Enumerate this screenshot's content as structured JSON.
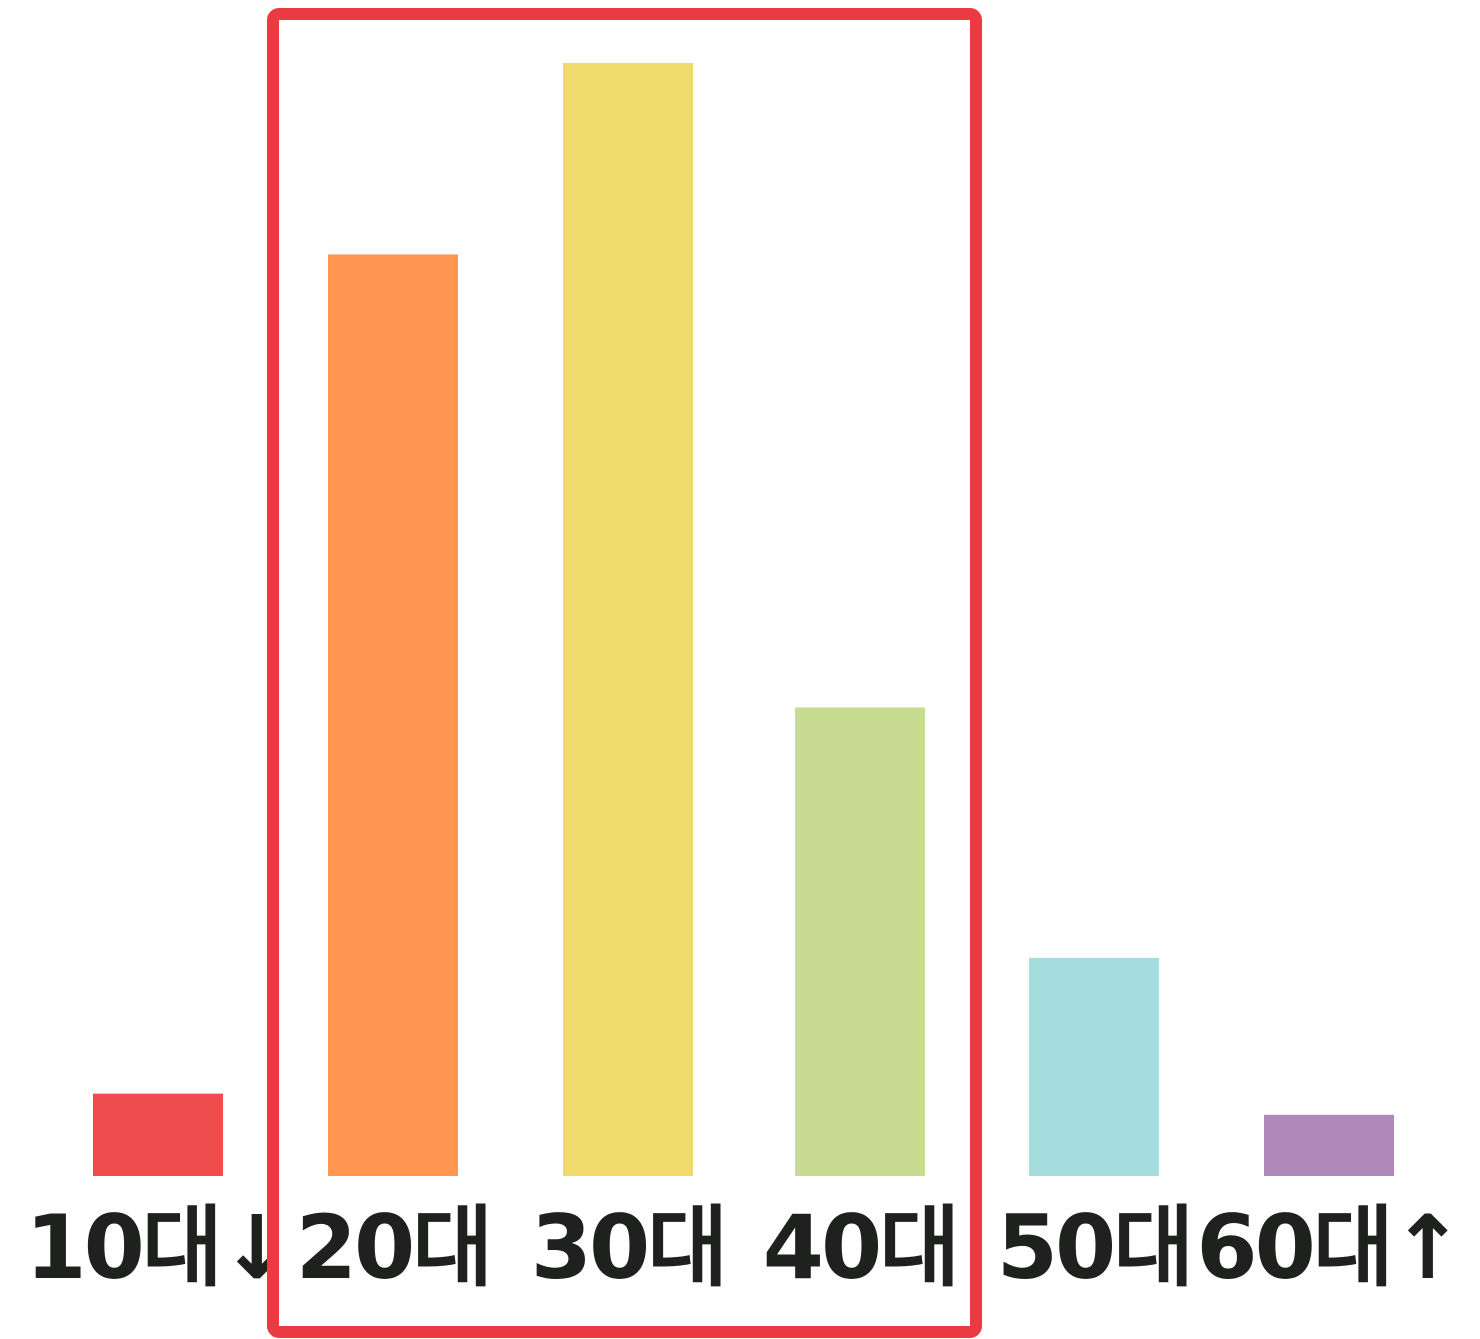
{
  "chart_data": {
    "type": "bar",
    "categories": [
      "10대↓",
      "20대",
      "30대",
      "40대",
      "50대",
      "60대↑"
    ],
    "values": [
      7.4,
      82.8,
      100,
      42.1,
      19.6,
      5.5
    ],
    "ylim": [
      0,
      100
    ],
    "grid": false,
    "axes_visible": false,
    "bar_colors": [
      "#ef4c4d",
      "#ff954f",
      "#f0da6b",
      "#c7db91",
      "#a5dcdd",
      "#af8ab9"
    ],
    "label_color": "#1e211e",
    "highlight": {
      "categories": [
        "20대",
        "30대",
        "40대"
      ],
      "style": "outline box",
      "color": "#ec3a43"
    }
  }
}
